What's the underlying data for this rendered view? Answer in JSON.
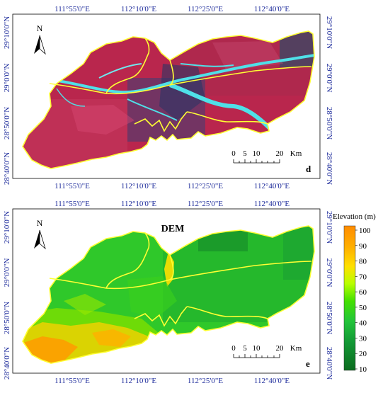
{
  "panel_d": {
    "label": "d",
    "top_ticks": [
      "111°55'0\"E",
      "112°10'0\"E",
      "112°25'0\"E",
      "112°40'0\"E"
    ],
    "bottom_ticks": [
      "111°55'0\"E",
      "112°10'0\"E",
      "112°25'0\"E",
      "112°40'0\"E"
    ],
    "left_ticks": [
      "29°10'0\"N",
      "29°0'0\"N",
      "28°50'0\"N",
      "28°40'0\"N"
    ],
    "right_ticks": [
      "29°10'0\"N",
      "29°0'0\"N",
      "28°50'0\"N",
      "28°40'0\"N"
    ],
    "north": "N",
    "scale": {
      "labels": [
        "0",
        "5",
        "10",
        "20"
      ],
      "unit": "Km"
    },
    "colors": {
      "land": "#b9264d",
      "water": "#4fe0e8",
      "boundary": "#ffff33",
      "dark": "#2d3b6a"
    }
  },
  "panel_e": {
    "label": "e",
    "title": "DEM",
    "top_ticks": [
      "111°55'0\"E",
      "112°10'0\"E",
      "112°25'0\"E",
      "112°40'0\"E"
    ],
    "bottom_ticks": [
      "111°55'0\"E",
      "112°10'0\"E",
      "112°25'0\"E",
      "112°40'0\"E"
    ],
    "left_ticks": [
      "29°10'0\"N",
      "29°0'0\"N",
      "28°50'0\"N",
      "28°40'0\"N"
    ],
    "right_ticks": [
      "29°10'0\"N",
      "29°0'0\"N",
      "28°50'0\"N",
      "28°40'0\"N"
    ],
    "north": "N",
    "scale": {
      "labels": [
        "0",
        "5",
        "10",
        "20"
      ],
      "unit": "Km"
    },
    "legend": {
      "title": "Elevation (m)",
      "ticks": [
        "100",
        "90",
        "80",
        "70",
        "60",
        "50",
        "40",
        "30",
        "20",
        "10"
      ],
      "colors": [
        "#ff8c00",
        "#ffcc00",
        "#e6ff00",
        "#66e600",
        "#22cc22",
        "#1fb04a",
        "#138a2e",
        "#0b6b1f"
      ]
    }
  }
}
